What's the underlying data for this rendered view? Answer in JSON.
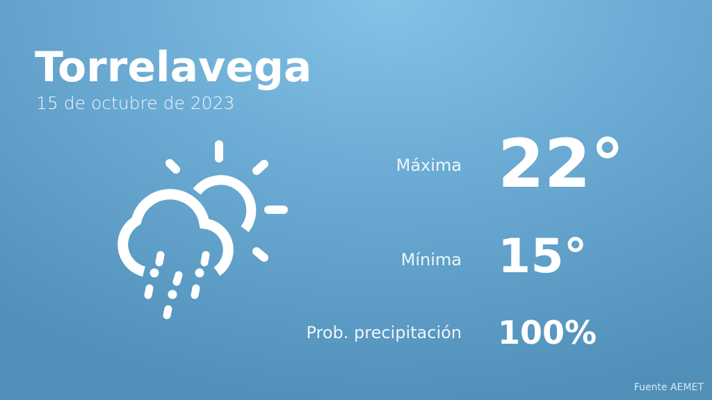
{
  "header": {
    "city": "Torrelavega",
    "date": "15 de octubre de 2023"
  },
  "weather": {
    "icon": "cloud-sun-rain-icon",
    "max_label": "Máxima",
    "max_value": "22°",
    "min_label": "Mínima",
    "min_value": "15°",
    "precip_label": "Prob. precipitación",
    "precip_value": "100%"
  },
  "footer": {
    "source": "Fuente AEMET"
  }
}
